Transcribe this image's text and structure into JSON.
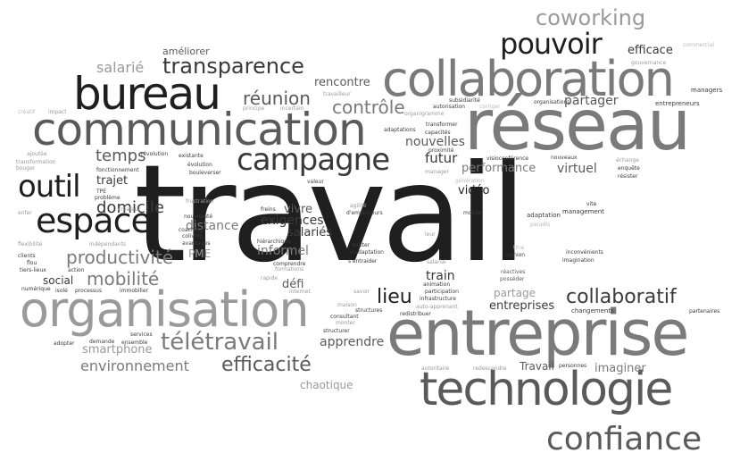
{
  "words": [
    "travail",
    "entreprise",
    "technologie",
    "réseau",
    "collaboration",
    "communication",
    "organisation",
    "bureau",
    "espace",
    "outil",
    "pouvoir",
    "campagne",
    "confiance",
    "coworking",
    "transparence",
    "télétravail",
    "efficacité",
    "collaboratif",
    "contrôle",
    "réunion",
    "productivité",
    "mobilité",
    "domicile",
    "temps",
    "salarié",
    "nouvelles",
    "performance",
    "environnement",
    "smartphone",
    "apprendre",
    "distance",
    "exigences",
    "salariés",
    "informel",
    "virtuel",
    "partager",
    "imaginer",
    "rencontre",
    "améliorer",
    "efficace",
    "lieu",
    "futur",
    "vidéo",
    "train",
    "défi",
    "vivre",
    "trajet",
    "social",
    "chaotique",
    "entreprises",
    "partage",
    "Travail",
    "PME",
    "entrepreneurs",
    "managers",
    "commercial",
    "gouvernance",
    "changements",
    "partenaires",
    "opinion",
    "inconvénients",
    "imagination",
    "adaptation",
    "management",
    "vite",
    "paradis",
    "titre",
    "posséder",
    "réactives",
    "mobile",
    "génération",
    "visioconférence",
    "nouveaux",
    "échange",
    "enquête",
    "résister",
    "capacités",
    "adaptations",
    "transformer",
    "proximité",
    "manager",
    "subsidiarité",
    "autorisation",
    "corriger",
    "organisations",
    "organigramme",
    "travailleur",
    "incertain",
    "principe",
    "impact",
    "créatif",
    "transformation",
    "bouger",
    "ajoutée",
    "révolution",
    "existante",
    "évolution",
    "bouleverser",
    "fonctionnement",
    "TPE",
    "problème",
    "frustration",
    "créateur",
    "enfer",
    "nouveauté",
    "coliving",
    "coaching",
    "avantages",
    "flexibilité",
    "indépendants",
    "clients",
    "flou",
    "tiers-lieux",
    "action",
    "isolé",
    "processus",
    "immobilier",
    "numérique",
    "services",
    "demande",
    "ensemble",
    "adopter",
    "internet",
    "rapide",
    "comprendre",
    "hiérarchique",
    "freins",
    "agilité",
    "d'employeurs",
    "valeur",
    "formations",
    "maison",
    "consultant",
    "monter",
    "savoir",
    "structurer",
    "structures",
    "redistribuer",
    "participation",
    "animation",
    "infrastructure",
    "auto-apprenant",
    "quitter",
    "inadaptation",
    "s'entraider",
    "salarial",
    "leur",
    "autoritaire",
    "redescendre",
    "personnes",
    "distribution"
  ]
}
